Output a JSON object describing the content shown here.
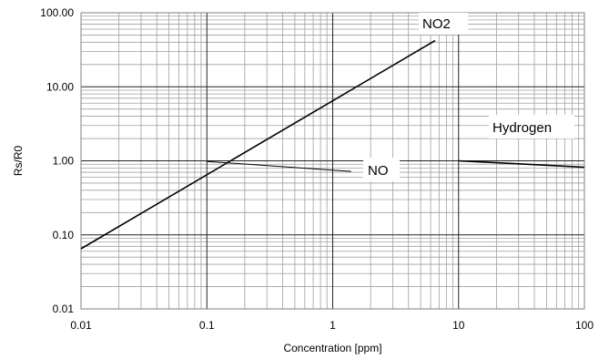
{
  "chart_data": {
    "type": "line",
    "title": "",
    "xlabel": "Concentration [ppm]",
    "ylabel": "Rs/R0",
    "x_scale": "log",
    "y_scale": "log",
    "xlim": [
      0.01,
      100
    ],
    "ylim": [
      0.01,
      100
    ],
    "grid": true,
    "x_ticks": [
      "0.01",
      "0.1",
      "1",
      "10",
      "100"
    ],
    "y_ticks": [
      "0.01",
      "0.10",
      "1.00",
      "10.00",
      "100.00"
    ],
    "series": [
      {
        "name": "NO2",
        "x": [
          0.01,
          6.5
        ],
        "y": [
          0.065,
          42
        ]
      },
      {
        "name": "NO",
        "x": [
          0.1,
          1.4
        ],
        "y": [
          0.98,
          0.72
        ]
      },
      {
        "name": "Hydrogen",
        "x": [
          10,
          100
        ],
        "y": [
          1.0,
          0.82
        ]
      }
    ],
    "colors": {
      "line": "#000000",
      "major_grid": "#222222",
      "minor_grid": "#a0a0a0",
      "frame": "#808080"
    }
  }
}
